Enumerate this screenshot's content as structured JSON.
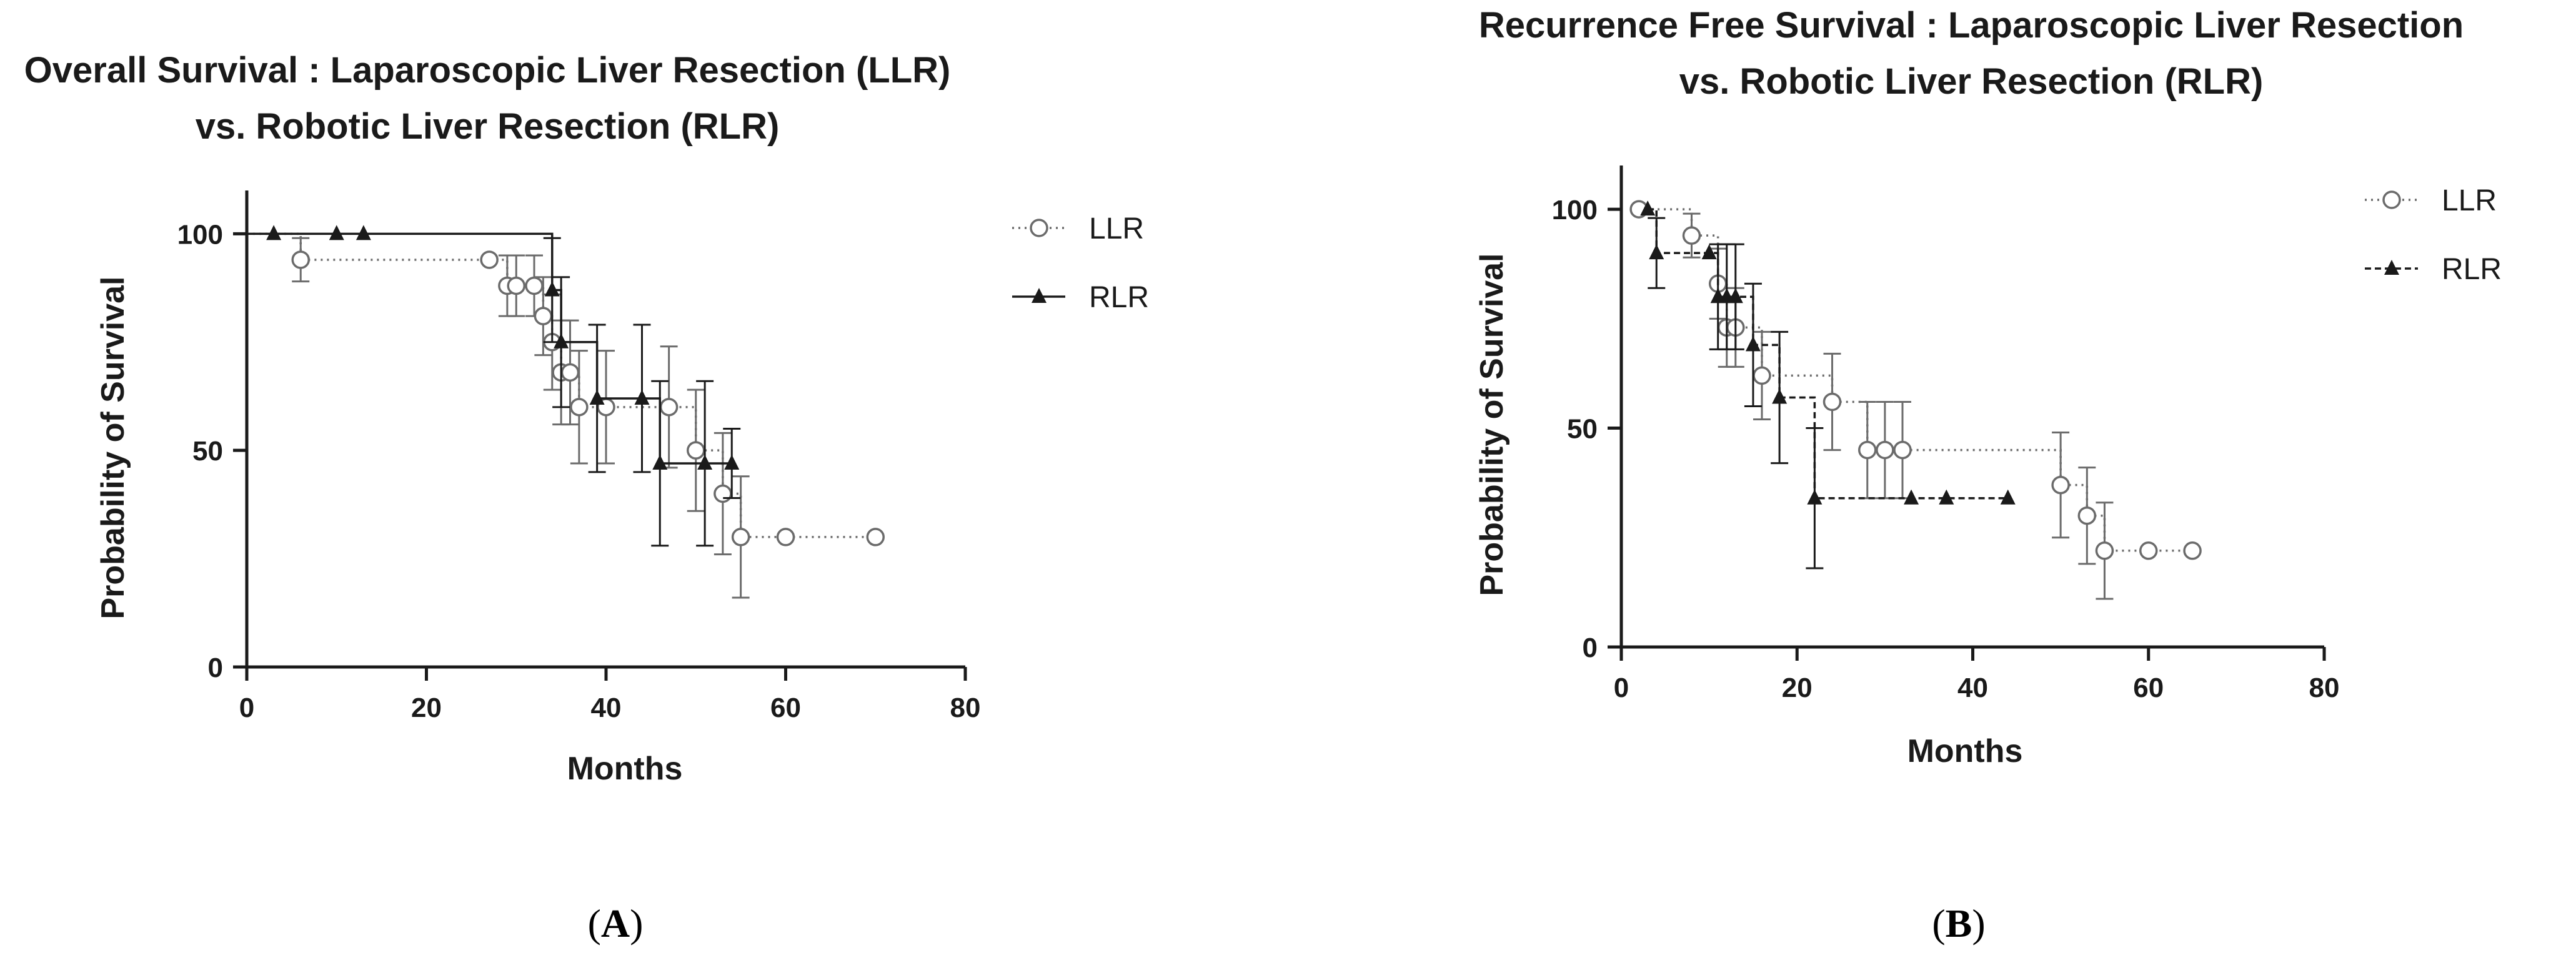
{
  "chart_data": [
    {
      "type": "line",
      "panel_label": "(A)",
      "panel_letter": "A",
      "title": "Overall Survival : Laparoscopic Liver Resection (LLR) vs. Robotic Liver Resection (RLR)",
      "title_lines": [
        "Overall Survival : Laparoscopic Liver Resection (LLR)",
        "vs. Robotic Liver Resection (RLR)"
      ],
      "xlabel": "Months",
      "ylabel": "Probability of Survival",
      "xlim": [
        0,
        80
      ],
      "ylim": [
        0,
        110
      ],
      "xticks": [
        0,
        20,
        40,
        60,
        80
      ],
      "yticks": [
        0,
        50,
        100
      ],
      "legend_position": "right",
      "series": [
        {
          "name": "LLR",
          "marker": "circle",
          "color": "#6b6b6b",
          "line_style": "dotted",
          "x": [
            0,
            6,
            27,
            29,
            30,
            32,
            33,
            34,
            35,
            36,
            37,
            40,
            47,
            50,
            53,
            55,
            60,
            70
          ],
          "y": [
            100,
            94,
            94,
            88,
            88,
            88,
            81,
            75,
            68,
            68,
            60,
            60,
            60,
            50,
            40,
            30,
            30,
            30
          ],
          "err": [
            0,
            5,
            0,
            7,
            7,
            7,
            9,
            11,
            12,
            12,
            13,
            13,
            14,
            14,
            14,
            14,
            0,
            0
          ]
        },
        {
          "name": "RLR",
          "marker": "triangle",
          "color": "#1a1a1a",
          "line_style": "solid",
          "x": [
            0,
            3,
            10,
            13,
            34,
            35,
            39,
            44,
            46,
            51,
            54
          ],
          "y": [
            100,
            100,
            100,
            100,
            87,
            75,
            62,
            62,
            47,
            47,
            47
          ],
          "err": [
            0,
            0,
            0,
            0,
            12,
            15,
            17,
            17,
            19,
            19,
            8
          ]
        }
      ]
    },
    {
      "type": "line",
      "panel_label": "(B)",
      "panel_letter": "B",
      "title": "Recurrence Free Survival : Laparoscopic Liver Resection vs. Robotic Liver Resection (RLR)",
      "title_lines": [
        "Recurrence Free Survival : Laparoscopic Liver Resection",
        "vs. Robotic Liver Resection (RLR)"
      ],
      "xlabel": "Months",
      "ylabel": "Probability of Survival",
      "xlim": [
        0,
        80
      ],
      "ylim": [
        0,
        110
      ],
      "xticks": [
        0,
        20,
        40,
        60,
        80
      ],
      "yticks": [
        0,
        50,
        100
      ],
      "legend_position": "right",
      "series": [
        {
          "name": "LLR",
          "marker": "circle",
          "color": "#6b6b6b",
          "line_style": "dotted",
          "x": [
            2,
            8,
            11,
            12,
            13,
            16,
            24,
            28,
            30,
            32,
            50,
            53,
            55,
            60,
            65
          ],
          "y": [
            100,
            94,
            83,
            73,
            73,
            62,
            56,
            45,
            45,
            45,
            37,
            30,
            22,
            22,
            22
          ],
          "err": [
            0,
            5,
            8,
            9,
            9,
            10,
            11,
            11,
            11,
            11,
            12,
            11,
            11,
            0,
            0
          ]
        },
        {
          "name": "RLR",
          "marker": "triangle",
          "color": "#1a1a1a",
          "line_style": "dashed",
          "x": [
            3,
            4,
            10,
            11,
            12,
            13,
            15,
            18,
            22,
            33,
            37,
            44
          ],
          "y": [
            100,
            90,
            90,
            80,
            80,
            80,
            69,
            57,
            34,
            34,
            34,
            34
          ],
          "err": [
            0,
            8,
            0,
            12,
            12,
            12,
            14,
            15,
            16,
            0,
            0,
            0
          ]
        }
      ]
    }
  ]
}
